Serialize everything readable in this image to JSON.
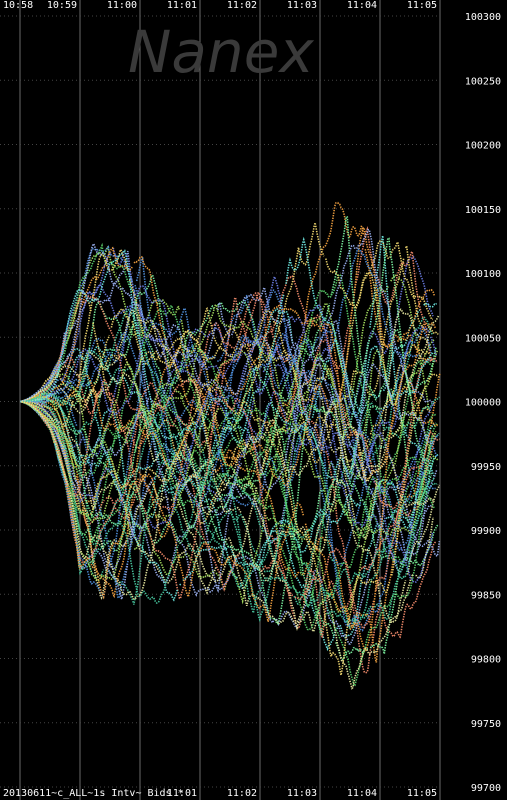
{
  "watermark": "Nanex",
  "footer_label": "20130611~c_ALL~1s Intv~ Bids *",
  "chart_data": {
    "type": "line",
    "series_style": "many colored dotted traces (bid streams)",
    "grid": true,
    "grid_style": "gray vertical lines per minute, dotted horizontal lines",
    "background": "#000000",
    "x_ticks_top": [
      "10:58",
      "10:59",
      "11:00",
      "11:01",
      "11:02",
      "11:03",
      "11:04",
      "11:05"
    ],
    "x_ticks_bottom": [
      "11:01",
      "11:02",
      "11:03",
      "11:04",
      "11:05"
    ],
    "x_range": [
      "10:58",
      "11:05"
    ],
    "y_ticks": [
      100300,
      100250,
      100200,
      100150,
      100100,
      100050,
      100000,
      99950,
      99900,
      99850,
      99800,
      99750,
      99700
    ],
    "y_range": [
      99700,
      100300
    ],
    "y_axis_side": "right",
    "envelope": {
      "time": [
        "10:58",
        "10:58:30",
        "10:59",
        "10:59:30",
        "11:00",
        "11:00:30",
        "11:01",
        "11:01:30",
        "11:02",
        "11:02:30",
        "11:03",
        "11:03:15",
        "11:03:30",
        "11:04",
        "11:04:30",
        "11:05"
      ],
      "upper": [
        100010,
        100050,
        100125,
        100120,
        100115,
        100075,
        100070,
        100080,
        100085,
        100110,
        100145,
        100160,
        100140,
        100130,
        100120,
        100075
      ],
      "lower": [
        99990,
        99945,
        99840,
        99850,
        99840,
        99845,
        99850,
        99855,
        99830,
        99825,
        99820,
        99795,
        99775,
        99800,
        99825,
        99885
      ]
    },
    "colors": [
      "#4f8fdc",
      "#6a7be0",
      "#7cf2a0",
      "#5ad06a",
      "#f0d870",
      "#f08a6a",
      "#6ee8e0",
      "#a8e060",
      "#f0a040",
      "#9ab0f0",
      "#48c8a0",
      "#e8e8a0"
    ]
  }
}
